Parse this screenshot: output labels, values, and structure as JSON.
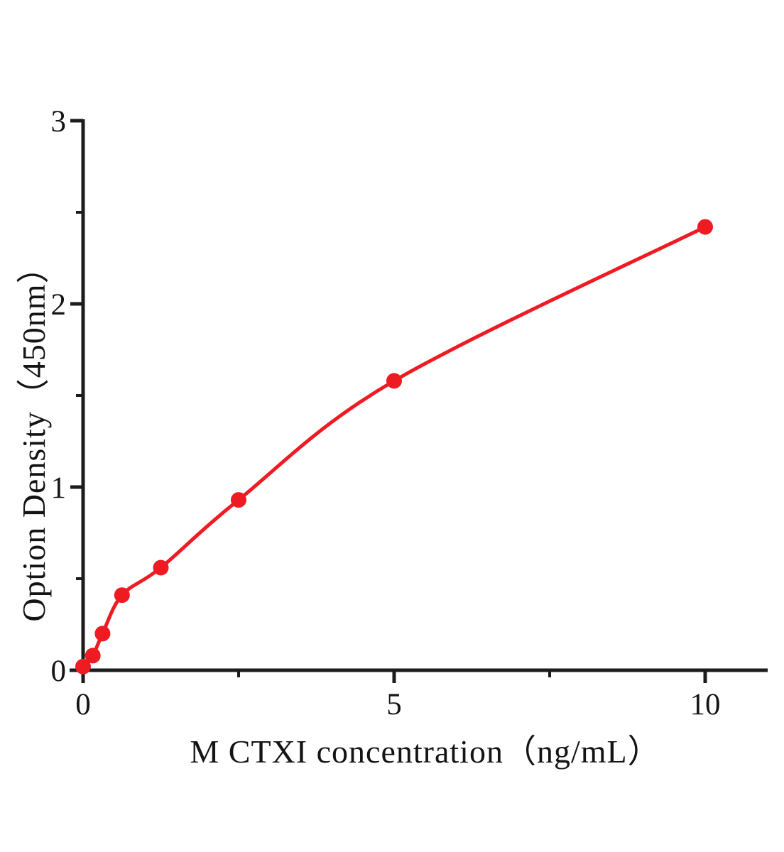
{
  "chart_data": {
    "type": "scatter",
    "title": "",
    "xlabel": "M CTXI concentration（ng/mL）",
    "ylabel": "Option Density（450nm）",
    "x": [
      0,
      0.156,
      0.313,
      0.625,
      1.25,
      2.5,
      5,
      10
    ],
    "y": [
      0.02,
      0.08,
      0.2,
      0.41,
      0.56,
      0.93,
      1.58,
      2.42
    ],
    "xlim": [
      0,
      11
    ],
    "ylim": [
      0,
      3
    ],
    "xticks": {
      "major": [
        0,
        5,
        10
      ],
      "labels": [
        "0",
        "5",
        "10"
      ],
      "minor": [
        2.5,
        7.5
      ]
    },
    "yticks": {
      "major": [
        0,
        1,
        2,
        3
      ],
      "labels": [
        "0",
        "1",
        "2",
        "3"
      ],
      "minor": [
        0.5,
        1.5,
        2.5
      ]
    },
    "grid": false,
    "legend": null,
    "curve": "smooth-fit",
    "marker": "circle",
    "curve_color": "#ee1b23",
    "axis_color": "#1c1c1c",
    "background_color": "#ffffff"
  }
}
